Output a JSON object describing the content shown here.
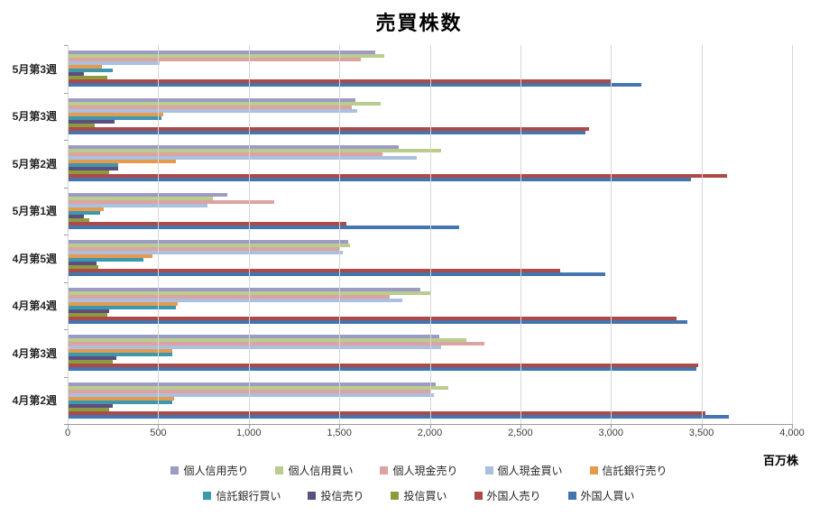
{
  "chart": {
    "title": "売買株数",
    "unit_label": "百万株"
  },
  "chart_data": {
    "type": "bar",
    "orientation": "horizontal",
    "title": "売買株数",
    "xlabel": "百万株",
    "grid": "vertical",
    "legend_position": "bottom-two-rows",
    "x_axis": {
      "min": 0,
      "max": 4000,
      "tick_step": 500,
      "tick_labels": [
        "0",
        "500",
        "1,000",
        "1,500",
        "2,000",
        "2,500",
        "3,000",
        "3,500",
        "4,000"
      ]
    },
    "categories": [
      "5月第3週",
      "5月第3週",
      "5月第2週",
      "5月第1週",
      "4月第5週",
      "4月第4週",
      "4月第3週",
      "4月第2週"
    ],
    "series": [
      {
        "name": "個人信用売り",
        "color": "#9C9BC4",
        "values": [
          1700,
          1590,
          1830,
          880,
          1550,
          1950,
          2050,
          2030
        ]
      },
      {
        "name": "個人信用買い",
        "color": "#BACC8E",
        "values": [
          1750,
          1730,
          2060,
          800,
          1560,
          2000,
          2200,
          2100
        ]
      },
      {
        "name": "個人現金売り",
        "color": "#DCA3A2",
        "values": [
          1620,
          1570,
          1740,
          1140,
          1500,
          1780,
          2300,
          2000
        ]
      },
      {
        "name": "個人現金買い",
        "color": "#A9C0DE",
        "values": [
          510,
          1600,
          1930,
          770,
          1520,
          1850,
          2060,
          2020
        ]
      },
      {
        "name": "信託銀行売り",
        "color": "#E59A4D",
        "values": [
          190,
          530,
          600,
          200,
          470,
          610,
          580,
          590
        ]
      },
      {
        "name": "信託銀行買い",
        "color": "#3B98AE",
        "values": [
          250,
          520,
          280,
          180,
          420,
          600,
          580,
          580
        ]
      },
      {
        "name": "投信売り",
        "color": "#5D4E7E",
        "values": [
          90,
          260,
          280,
          90,
          160,
          230,
          270,
          250
        ]
      },
      {
        "name": "投信買い",
        "color": "#8D9A3E",
        "values": [
          220,
          150,
          230,
          120,
          170,
          220,
          250,
          230
        ]
      },
      {
        "name": "外国人売り",
        "color": "#AC4A47",
        "values": [
          3000,
          2880,
          3640,
          1540,
          2720,
          3360,
          3480,
          3520
        ]
      },
      {
        "name": "外国人買い",
        "color": "#4375AE",
        "values": [
          3170,
          2860,
          3440,
          2160,
          2970,
          3420,
          3470,
          3650
        ]
      }
    ]
  }
}
